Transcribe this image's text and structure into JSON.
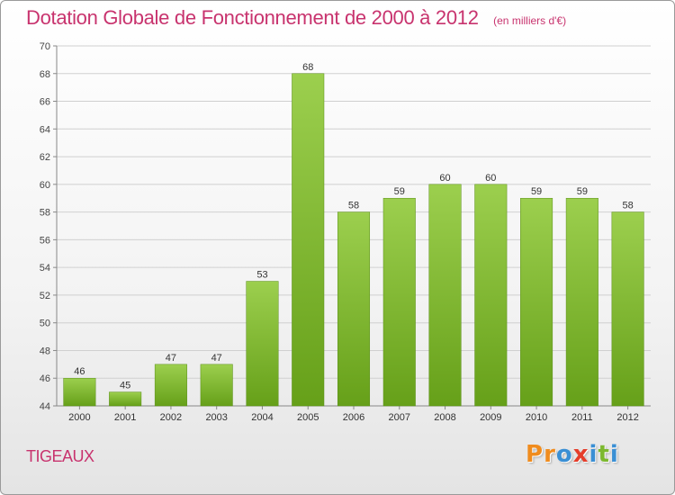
{
  "header": {
    "title": "Dotation Globale de Fonctionnement de 2000 à 2012",
    "subtitle": "(en milliers d'€)"
  },
  "footer": {
    "entity": "TIGEAUX",
    "logo_letters": [
      "P",
      "r",
      "o",
      "x",
      "i",
      "t",
      "i"
    ]
  },
  "colors": {
    "title": "#c8336e",
    "bar_light": "#9ccf4e",
    "bar_dark": "#66a019",
    "grid": "#d0d0d0",
    "logo": [
      "#f08c1e",
      "#f08c1e",
      "#3a8fd4",
      "#e53d2a",
      "#3a8fd4",
      "#7cb82f",
      "#3a8fd4"
    ]
  },
  "chart_data": {
    "type": "bar",
    "title": "Dotation Globale de Fonctionnement de 2000 à 2012",
    "subtitle": "(en milliers d'€)",
    "xlabel": "",
    "ylabel": "",
    "categories": [
      "2000",
      "2001",
      "2002",
      "2003",
      "2004",
      "2005",
      "2006",
      "2007",
      "2008",
      "2009",
      "2010",
      "2011",
      "2012"
    ],
    "values": [
      46,
      45,
      47,
      47,
      53,
      68,
      58,
      59,
      60,
      60,
      59,
      59,
      58
    ],
    "ylim": [
      44,
      70
    ],
    "yticks": [
      44,
      46,
      48,
      50,
      52,
      54,
      56,
      58,
      60,
      62,
      64,
      66,
      68,
      70
    ],
    "grid": true,
    "data_labels": true
  }
}
